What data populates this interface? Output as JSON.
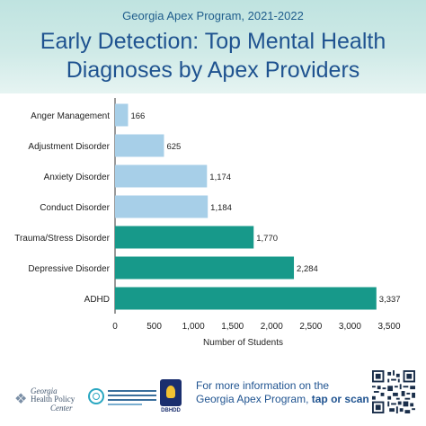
{
  "header": {
    "subtitle": "Georgia Apex Program, 2021-2022",
    "title_line1": "Early Detection: Top Mental Health",
    "title_line2": "Diagnoses by Apex Providers"
  },
  "chart_data": {
    "type": "bar",
    "orientation": "horizontal",
    "title": "Early Detection: Top Mental Health Diagnoses by Apex Providers",
    "subtitle": "Georgia Apex Program, 2021-2022",
    "xlabel": "Number of Students",
    "ylabel": "",
    "xlim": [
      0,
      3500
    ],
    "xticks": [
      0,
      500,
      1000,
      1500,
      2000,
      2500,
      3000,
      3500
    ],
    "xtick_labels": [
      "0",
      "500",
      "1,000",
      "1,500",
      "2,000",
      "2,500",
      "3,000",
      "3,500"
    ],
    "grid": false,
    "categories": [
      "Anger Management",
      "Adjustment Disorder",
      "Anxiety Disorder",
      "Conduct Disorder",
      "Trauma/Stress Disorder",
      "Depressive Disorder",
      "ADHD"
    ],
    "values": [
      166,
      625,
      1174,
      1184,
      1770,
      2284,
      3337
    ],
    "value_labels": [
      "166",
      "625",
      "1,174",
      "1,184",
      "1,770",
      "2,284",
      "3,337"
    ],
    "colors": [
      "#a7cfe8",
      "#a7cfe8",
      "#a7cfe8",
      "#a7cfe8",
      "#17998a",
      "#17998a",
      "#17998a"
    ]
  },
  "footer": {
    "ghpc_line1": "Georgia",
    "ghpc_line2": "Health Policy",
    "ghpc_line3": "Center",
    "dbhdd_label": "DBHDD",
    "info_line1": "For more information on the",
    "info_line2_pre": "Georgia Apex Program, ",
    "info_line2_bold": "tap or scan here",
    "icons": [
      "ghpc-logo-icon",
      "cebh-logo-icon",
      "dbhdd-logo-icon",
      "qr-code-icon"
    ]
  },
  "colors": {
    "title": "#1f5390",
    "header_bg": "#c8e8e5",
    "bar_light": "#a7cfe8",
    "bar_dark": "#17998a"
  }
}
